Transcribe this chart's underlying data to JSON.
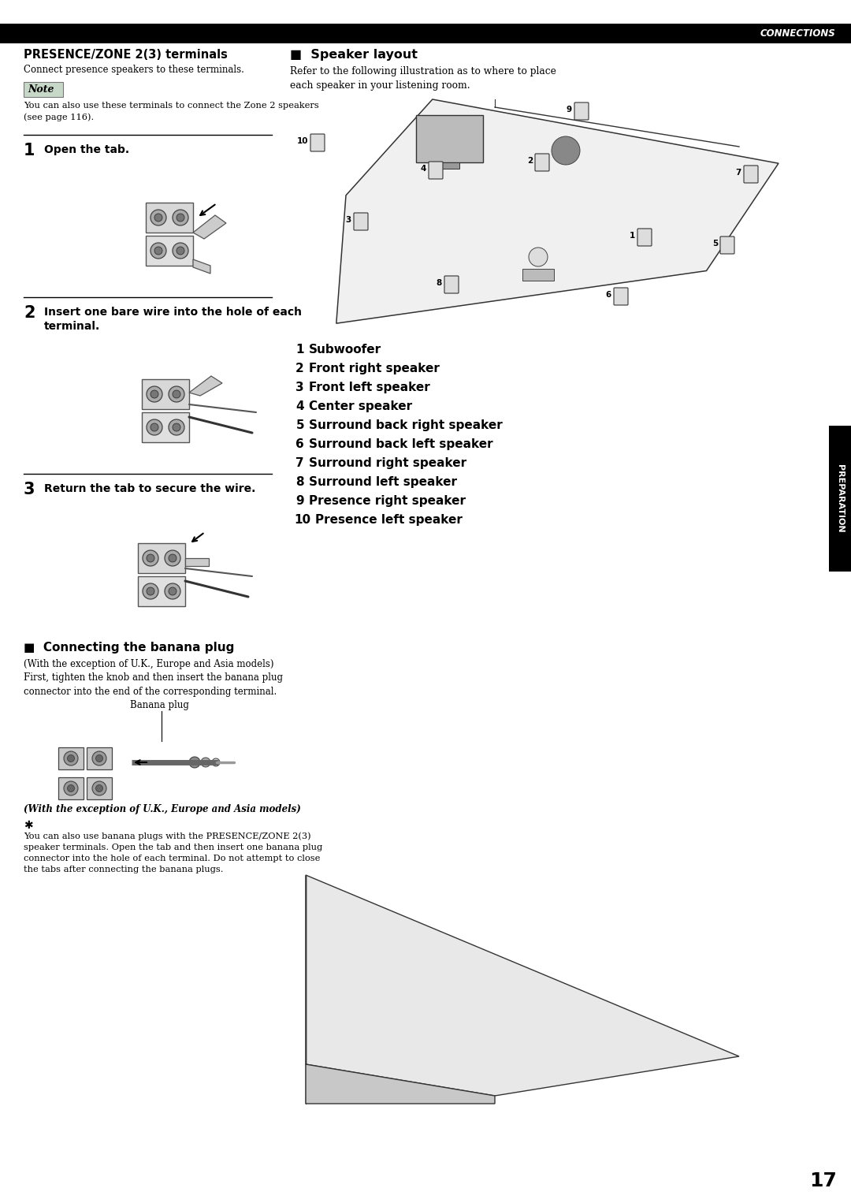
{
  "page_number": "17",
  "header_text": "CONNECTIONS",
  "bg_color": "#ffffff",
  "header_bg": "#000000",
  "header_fg": "#ffffff",
  "left_col": {
    "title": "PRESENCE/ZONE 2(3) terminals",
    "subtitle": "Connect presence speakers to these terminals.",
    "note_label": "Note",
    "note_text": "You can also use these terminals to connect the Zone 2 speakers\n(see page 116).",
    "step1_num": "1",
    "step1_text": "Open the tab.",
    "step2_num": "2",
    "step2_text": "Insert one bare wire into the hole of each\nterminal.",
    "step3_num": "3",
    "step3_text": "Return the tab to secure the wire.",
    "section2_title": "Connecting the banana plug",
    "section2_prefix": "■",
    "section2_desc": "(With the exception of U.K., Europe and Asia models)\nFirst, tighten the knob and then insert the banana plug\nconnector into the end of the corresponding terminal.",
    "banana_label": "Banana plug",
    "banana_caption": "(With the exception of U.K., Europe and Asia models)",
    "tip_text": "You can also use banana plugs with the PRESENCE/ZONE 2(3)\nspeaker terminals. Open the tab and then insert one banana plug\nconnector into the hole of each terminal. Do not attempt to close\nthe tabs after connecting the banana plugs."
  },
  "right_col": {
    "section_prefix": "■",
    "title": "Speaker layout",
    "desc": "Refer to the following illustration as to where to place\neach speaker in your listening room.",
    "items": [
      {
        "num": "1",
        "text": "Subwoofer"
      },
      {
        "num": "2",
        "text": "Front right speaker"
      },
      {
        "num": "3",
        "text": "Front left speaker"
      },
      {
        "num": "4",
        "text": "Center speaker"
      },
      {
        "num": "5",
        "text": "Surround back right speaker"
      },
      {
        "num": "6",
        "text": "Surround back left speaker"
      },
      {
        "num": "7",
        "text": "Surround right speaker"
      },
      {
        "num": "8",
        "text": "Surround left speaker"
      },
      {
        "num": "9",
        "text": "Presence right speaker"
      },
      {
        "num": "10",
        "text": "Presence left speaker"
      }
    ]
  },
  "right_tab": "PREPARATION",
  "note_bg": "#c8d8c8",
  "divider_color": "#000000"
}
